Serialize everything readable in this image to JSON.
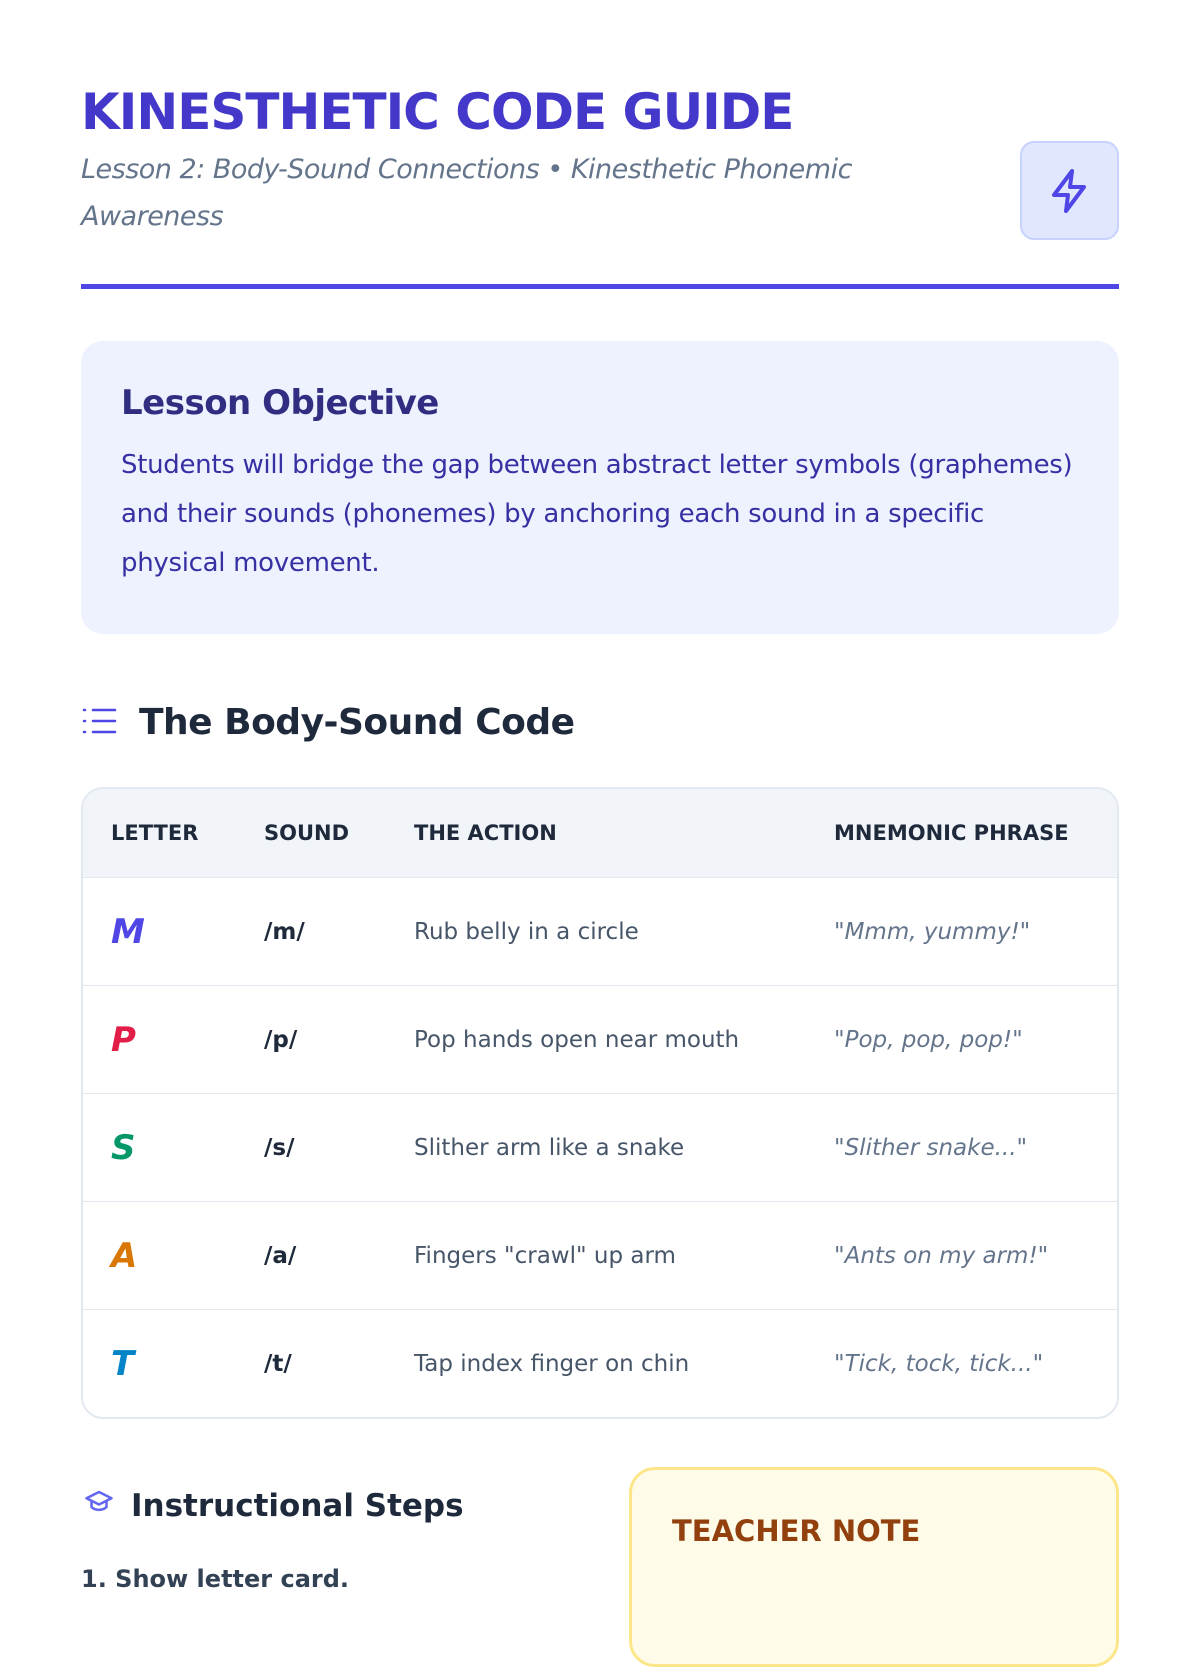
{
  "header": {
    "title": "KINESTHETIC CODE GUIDE",
    "subtitle": "Lesson 2: Body-Sound Connections • Kinesthetic Phonemic Awareness",
    "icon": "lightning-bolt-icon"
  },
  "objective": {
    "heading": "Lesson Objective",
    "text": "Students will bridge the gap between abstract letter symbols (graphemes) and their sounds (phonemes) by anchoring each sound in a specific physical movement."
  },
  "code_section": {
    "heading": "The Body-Sound Code",
    "icon": "list-icon",
    "columns": [
      "LETTER",
      "SOUND",
      "THE ACTION",
      "MNEMONIC PHRASE"
    ],
    "rows": [
      {
        "letter": "M",
        "sound": "/m/",
        "action": "Rub belly in a circle",
        "phrase": "\"Mmm, yummy!\"",
        "color": "#4f46e5"
      },
      {
        "letter": "P",
        "sound": "/p/",
        "action": "Pop hands open near mouth",
        "phrase": "\"Pop, pop, pop!\"",
        "color": "#e11d48"
      },
      {
        "letter": "S",
        "sound": "/s/",
        "action": "Slither arm like a snake",
        "phrase": "\"Slither snake...\"",
        "color": "#059669"
      },
      {
        "letter": "A",
        "sound": "/a/",
        "action": "Fingers \"crawl\" up arm",
        "phrase": "\"Ants on my arm!\"",
        "color": "#d97706"
      },
      {
        "letter": "T",
        "sound": "/t/",
        "action": "Tap index finger on chin",
        "phrase": "\"Tick, tock, tick...\"",
        "color": "#0284c7"
      }
    ]
  },
  "steps": {
    "heading": "Instructional Steps",
    "icon": "graduation-cap-icon",
    "items": [
      "1. Show letter card."
    ]
  },
  "note": {
    "heading": "TEACHER NOTE"
  }
}
